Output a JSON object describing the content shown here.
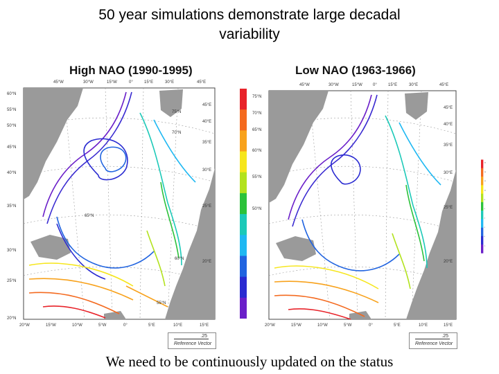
{
  "slide": {
    "title_line1": "50 year simulations demonstrate large decadal",
    "title_line2": "variability",
    "footer": "We need to be continuously updated on the status"
  },
  "left_panel": {
    "label": "High NAO (1990-1995)",
    "top_lon_labels": [
      "45°W",
      "30°W",
      "15°W",
      "0°",
      "15°E",
      "30°E",
      "45°E"
    ],
    "bottom_lon_labels": [
      "20°W",
      "15°W",
      "10°W",
      "5°W",
      "0°",
      "5°E",
      "10°E",
      "15°E"
    ],
    "left_lat_labels": [
      "60°N",
      "55°N",
      "50°N",
      "45°N",
      "40°N",
      "35°N",
      "30°N",
      "25°N",
      "20°N"
    ],
    "inner_lat_labels": [
      "75°N",
      "70°N",
      "65°N",
      "60°N",
      "55°N"
    ],
    "right_lon_labels": [
      "45°E",
      "40°E",
      "35°E",
      "30°E",
      "25°E",
      "20°E"
    ],
    "reference_vector": {
      "value": ".25",
      "label": "Reference Vector"
    }
  },
  "right_panel": {
    "label": "Low NAO (1963-1966)",
    "top_lon_labels": [
      "45°W",
      "30°W",
      "15°W",
      "0°",
      "15°E",
      "30°E",
      "45°E"
    ],
    "bottom_lon_labels": [
      "20°W",
      "15°W",
      "10°W",
      "5°W",
      "0°",
      "5°E",
      "10°E",
      "15°E"
    ],
    "left_lat_labels": [
      "75°N",
      "70°N",
      "65°N",
      "60°N",
      "55°N",
      "50°N"
    ],
    "right_lon_labels": [
      "45°E",
      "40°E",
      "35°E",
      "30°E",
      "25°E",
      "20°E"
    ],
    "reference_vector": {
      "value": ".25",
      "label": "Reference Vector"
    }
  },
  "colorbar_right": {
    "tick_labels": [
      "16",
      "14",
      "12",
      "10",
      "8",
      "6",
      "4",
      "2",
      "0",
      "-1"
    ]
  },
  "colors": {
    "land": "#9a9a9a",
    "ocean": "#ffffff",
    "colorbar": [
      "#e8232a",
      "#f46a1f",
      "#f8a21c",
      "#f6e61c",
      "#b2e21e",
      "#2cc23a",
      "#1cc9b8",
      "#1fb8f2",
      "#2164e0",
      "#2a2bd1",
      "#6a1fc9"
    ]
  }
}
